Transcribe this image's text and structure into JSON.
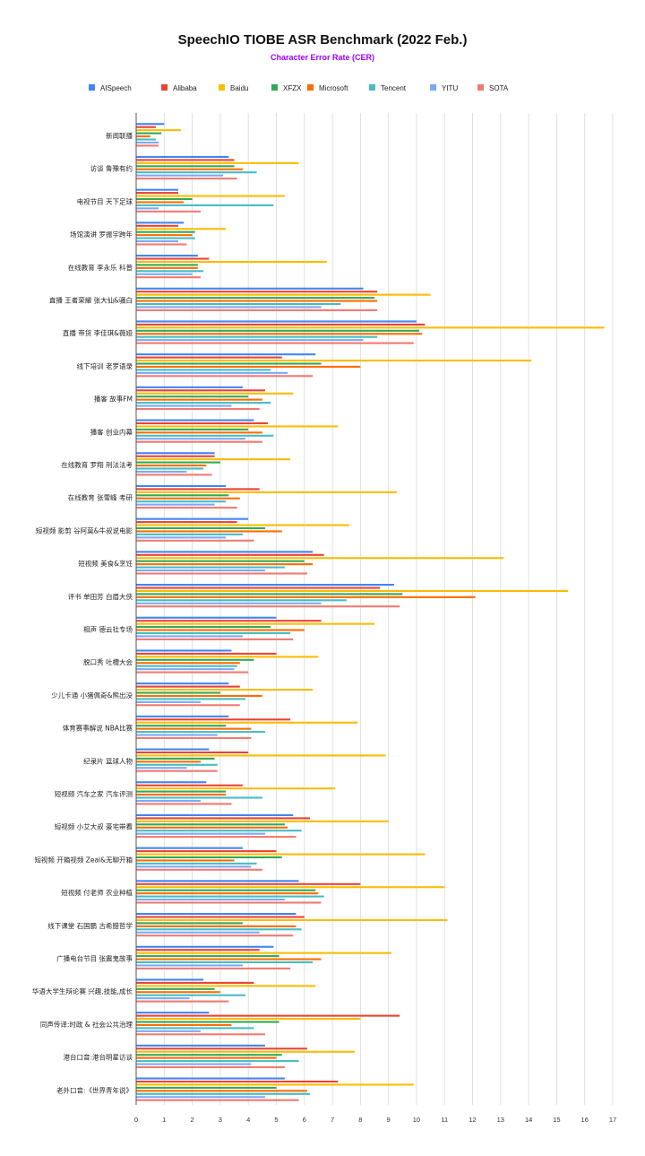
{
  "chart_data": {
    "type": "bar",
    "orientation": "horizontal",
    "title": "SpeechIO TIOBE ASR Benchmark (2022 Feb.)",
    "subtitle": "Character Error Rate (CER)",
    "xlabel": "",
    "ylabel": "",
    "xlim": [
      0,
      17
    ],
    "xticks": [
      0,
      1,
      2,
      3,
      4,
      5,
      6,
      7,
      8,
      9,
      10,
      11,
      12,
      13,
      14,
      15,
      16,
      17
    ],
    "grid": true,
    "legend_position": "top",
    "colors": {
      "AISpeech": "#4285f4",
      "Alibaba": "#ea4335",
      "Baidu": "#fbbc04",
      "XFZX": "#34a853",
      "Microsoft": "#ff6d01",
      "Tencent": "#46bdc6",
      "YITU": "#7baaf7",
      "SOTA": "#f07b72"
    },
    "categories": [
      "新闻联播",
      "访谈 鲁豫有约",
      "电视节目 天下足球",
      "场馆演讲 罗振宇跨年",
      "在线教育 李永乐 科普",
      "直播 王者荣耀 张大仙&骚白",
      "直播 带货 李佳琪&薇娅",
      "线下培训 老罗语录",
      "播客 故事FM",
      "播客 创业内幕",
      "在线教育 罗翔 刑法法考",
      "在线教育 张雪峰 考研",
      "短视频 影剪 谷阿莫&牛叔说电影",
      "短视频 美食&烹饪",
      "评书 单田芳 白眉大侠",
      "相声 德云社专场",
      "脱口秀 吐槽大会",
      "少儿卡通 小猪佩奇&熊出没",
      "体育赛事解说 NBA比赛",
      "纪录片 篮球人物",
      "短视频 汽车之家 汽车评测",
      "短视频 小艾大叔 豪宅带看",
      "短视频 开箱视频 Zeal&无聊开箱",
      "短视频 付老师 农业种植",
      "线下课堂 石国鹏 古希腊哲学",
      "广播电台节目 张震鬼故事",
      "华语大学生辩论赛 兴趣,技能,成长",
      "同声传译:时政 & 社会公共治理",
      "港台口音:港台明星访谈",
      "老外口音:《世界青年说》"
    ],
    "series": [
      {
        "name": "AISpeech",
        "values": [
          1.0,
          3.3,
          1.5,
          1.7,
          2.2,
          8.1,
          10.0,
          6.4,
          3.8,
          4.2,
          2.8,
          3.2,
          4.0,
          6.3,
          9.2,
          5.0,
          3.4,
          3.3,
          3.3,
          2.6,
          2.5,
          5.6,
          3.8,
          5.8,
          5.7,
          4.9,
          2.4,
          2.6,
          4.6,
          5.3
        ]
      },
      {
        "name": "Alibaba",
        "values": [
          0.7,
          3.5,
          1.5,
          1.5,
          2.6,
          8.6,
          10.3,
          5.2,
          4.6,
          4.7,
          2.8,
          4.4,
          3.6,
          6.7,
          8.7,
          6.6,
          5.0,
          3.7,
          5.5,
          4.0,
          3.8,
          6.2,
          5.0,
          8.0,
          6.0,
          4.4,
          4.2,
          9.4,
          6.1,
          7.2
        ]
      },
      {
        "name": "Baidu",
        "values": [
          1.6,
          5.8,
          5.3,
          3.2,
          6.8,
          10.5,
          16.7,
          14.1,
          5.6,
          7.2,
          5.5,
          9.3,
          7.6,
          13.1,
          15.4,
          8.5,
          6.5,
          6.3,
          7.9,
          8.9,
          7.1,
          9.0,
          10.3,
          11.0,
          11.1,
          9.1,
          6.4,
          8.0,
          7.8,
          9.9
        ]
      },
      {
        "name": "XFZX",
        "values": [
          0.9,
          3.5,
          2.0,
          2.1,
          2.2,
          8.5,
          10.1,
          6.6,
          4.0,
          4.0,
          3.0,
          3.3,
          4.6,
          6.0,
          9.5,
          4.8,
          4.2,
          3.0,
          3.2,
          2.8,
          3.2,
          5.3,
          5.2,
          6.4,
          3.8,
          5.1,
          2.8,
          5.1,
          5.2,
          5.0
        ]
      },
      {
        "name": "Microsoft",
        "values": [
          0.5,
          3.8,
          1.7,
          2.0,
          2.2,
          8.6,
          10.2,
          8.0,
          4.5,
          4.5,
          2.5,
          3.7,
          5.2,
          6.3,
          12.1,
          6.0,
          3.7,
          4.5,
          4.1,
          2.3,
          3.2,
          5.4,
          3.5,
          6.5,
          5.7,
          6.6,
          3.0,
          3.4,
          5.0,
          6.1
        ]
      },
      {
        "name": "Tencent",
        "values": [
          0.7,
          4.3,
          4.9,
          2.1,
          2.4,
          7.3,
          8.6,
          4.8,
          4.8,
          4.9,
          2.4,
          3.2,
          3.8,
          5.3,
          7.5,
          5.5,
          3.6,
          3.9,
          4.6,
          2.9,
          4.5,
          5.9,
          4.3,
          6.7,
          5.9,
          6.3,
          3.9,
          4.2,
          5.8,
          6.2
        ]
      },
      {
        "name": "YITU",
        "values": [
          0.8,
          3.1,
          0.8,
          1.5,
          2.0,
          6.6,
          8.1,
          5.4,
          3.4,
          3.9,
          1.8,
          2.8,
          3.2,
          4.6,
          6.6,
          3.8,
          3.5,
          2.3,
          2.9,
          1.8,
          2.3,
          4.6,
          4.1,
          5.3,
          4.4,
          3.8,
          1.9,
          2.3,
          4.1,
          4.6
        ]
      },
      {
        "name": "SOTA",
        "values": [
          0.8,
          3.6,
          2.3,
          1.8,
          2.3,
          8.6,
          9.9,
          6.3,
          4.4,
          4.5,
          2.7,
          3.6,
          4.2,
          6.1,
          9.4,
          5.6,
          4.0,
          3.7,
          4.1,
          2.9,
          3.4,
          5.7,
          4.5,
          6.6,
          5.6,
          5.5,
          3.3,
          4.6,
          5.3,
          5.8
        ]
      }
    ]
  }
}
